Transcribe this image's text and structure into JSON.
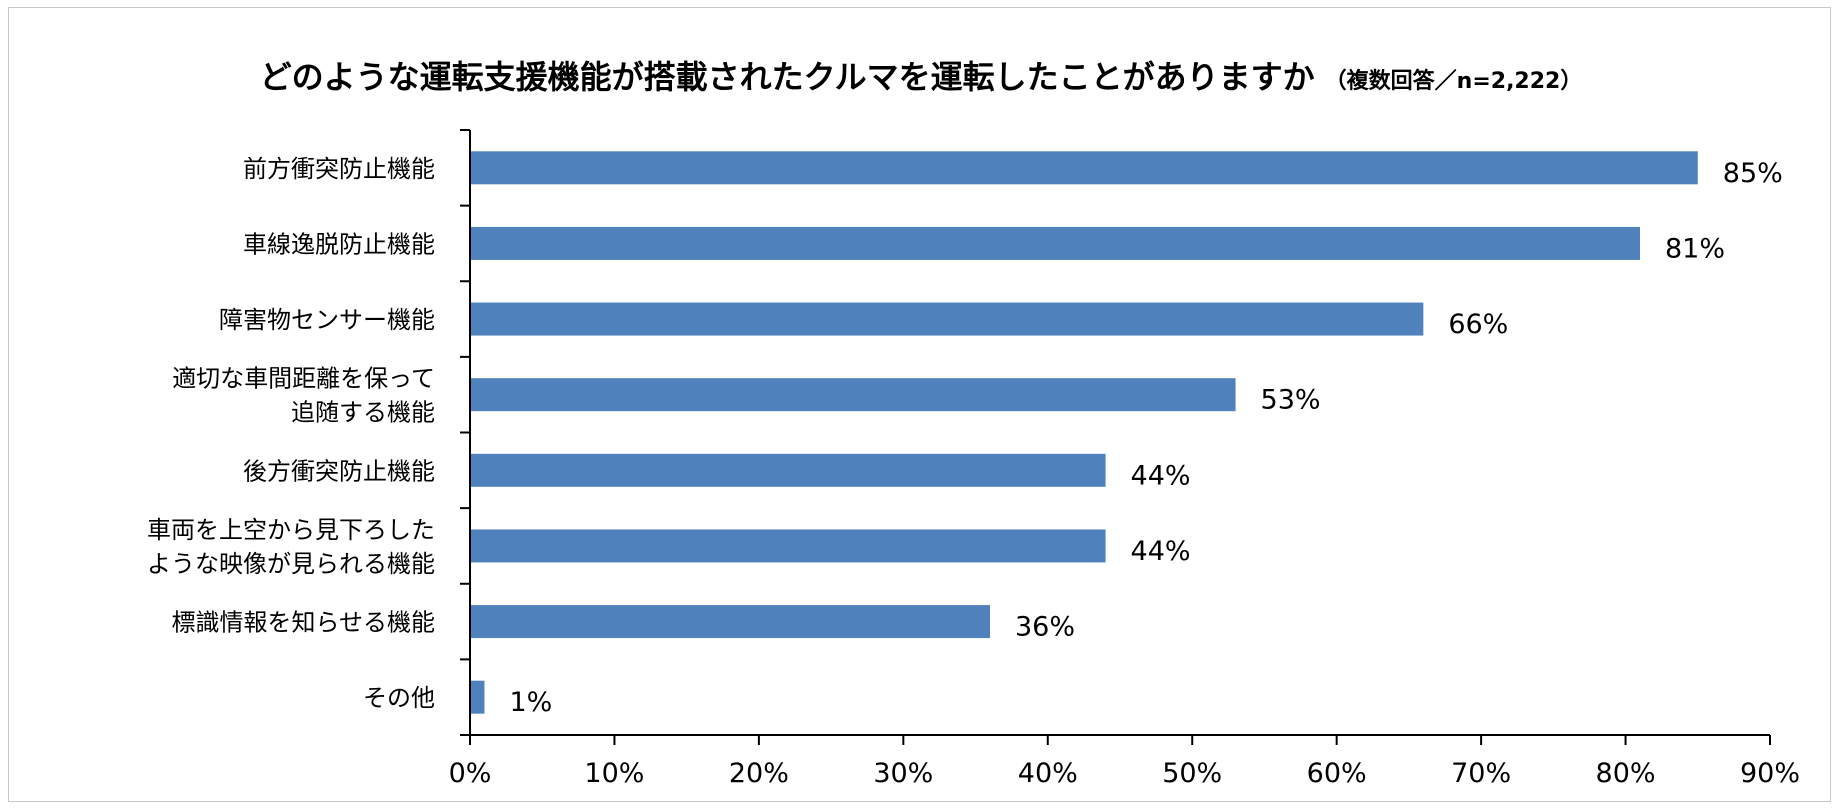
{
  "chart_data": {
    "type": "bar",
    "orientation": "horizontal",
    "title": "どのような運転支援機能が搭載されたクルマを運転したことがありますか",
    "subtitle": "（複数回答／n=2,222）",
    "categories": [
      [
        "前方衝突防止機能"
      ],
      [
        "車線逸脱防止機能"
      ],
      [
        "障害物センサー機能"
      ],
      [
        "適切な車間距離を保って",
        "追随する機能"
      ],
      [
        "後方衝突防止機能"
      ],
      [
        "車両を上空から見下ろした",
        "ような映像が見られる機能"
      ],
      [
        "標識情報を知らせる機能"
      ],
      [
        "その他"
      ]
    ],
    "values": [
      85,
      81,
      66,
      53,
      44,
      44,
      36,
      1
    ],
    "value_labels": [
      "85%",
      "81%",
      "66%",
      "53%",
      "44%",
      "44%",
      "36%",
      "1%"
    ],
    "xlim": [
      0,
      90
    ],
    "xticks": [
      0,
      10,
      20,
      30,
      40,
      50,
      60,
      70,
      80,
      90
    ],
    "xtick_labels": [
      "0%",
      "10%",
      "20%",
      "30%",
      "40%",
      "50%",
      "60%",
      "70%",
      "80%",
      "90%"
    ],
    "grid": false,
    "legend": "none",
    "colors": {
      "bar": "#4f81bd",
      "axis": "#000000",
      "frame": "#c8c8c8"
    }
  }
}
